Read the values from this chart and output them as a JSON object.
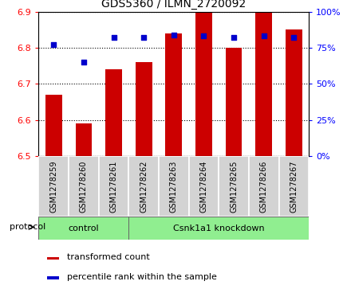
{
  "title": "GDS5360 / ILMN_2720092",
  "samples": [
    "GSM1278259",
    "GSM1278260",
    "GSM1278261",
    "GSM1278262",
    "GSM1278263",
    "GSM1278264",
    "GSM1278265",
    "GSM1278266",
    "GSM1278267"
  ],
  "transformed_count": [
    6.67,
    6.59,
    6.74,
    6.76,
    6.84,
    6.9,
    6.8,
    6.9,
    6.85
  ],
  "percentile_rank": [
    77,
    65,
    82,
    82,
    84,
    83,
    82,
    83,
    82
  ],
  "bar_bottom": 6.5,
  "ylim": [
    6.5,
    6.9
  ],
  "y2lim": [
    0,
    100
  ],
  "yticks": [
    6.5,
    6.6,
    6.7,
    6.8,
    6.9
  ],
  "y2ticks": [
    0,
    25,
    50,
    75,
    100
  ],
  "bar_color": "#cc0000",
  "dot_color": "#0000cc",
  "bar_width": 0.55,
  "control_count": 3,
  "plot_bg": "#ffffff",
  "label_bg": "#d3d3d3",
  "proto_color": "#90ee90"
}
